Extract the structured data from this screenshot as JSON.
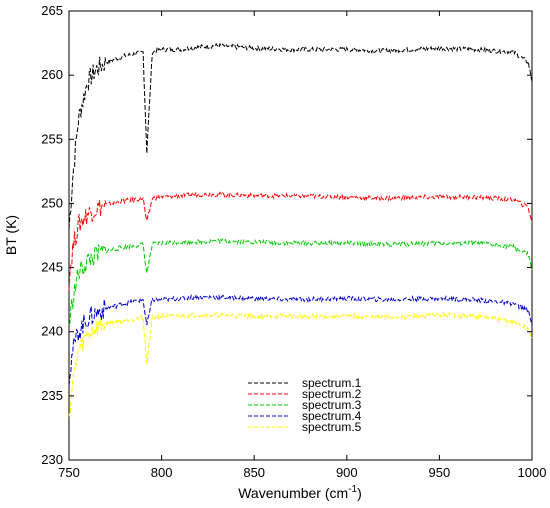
{
  "chart_data": {
    "type": "line",
    "title": "",
    "xlabel": "Wavenumber (cm",
    "xlabel_superscript": "-1",
    "xlabel_suffix": ")",
    "ylabel": "BT (K)",
    "xlim": [
      750,
      1000
    ],
    "ylim": [
      230,
      265
    ],
    "xticks": [
      750,
      800,
      850,
      900,
      950,
      1000
    ],
    "yticks": [
      230,
      235,
      240,
      245,
      250,
      255,
      260,
      265
    ],
    "grid": false,
    "legend_position": "bottom-center",
    "x": [
      750,
      752,
      755,
      760,
      765,
      770,
      780,
      790,
      792,
      795,
      800,
      810,
      820,
      830,
      850,
      870,
      900,
      920,
      950,
      970,
      990,
      998,
      1000
    ],
    "series": [
      {
        "name": "spectrum.1",
        "color": "#000000",
        "values": [
          248.0,
          252.0,
          256.5,
          259.5,
          260.5,
          261.0,
          261.5,
          261.8,
          254.0,
          261.8,
          262.0,
          262.0,
          262.2,
          262.3,
          262.1,
          262.0,
          262.0,
          261.9,
          262.1,
          262.0,
          261.8,
          261.0,
          259.5
        ]
      },
      {
        "name": "spectrum.2",
        "color": "#ff0000",
        "values": [
          244.0,
          246.5,
          248.3,
          249.2,
          249.6,
          249.9,
          250.2,
          250.4,
          248.5,
          250.4,
          250.5,
          250.6,
          250.7,
          250.7,
          250.6,
          250.6,
          250.5,
          250.4,
          250.5,
          250.5,
          250.3,
          249.7,
          248.5
        ]
      },
      {
        "name": "spectrum.3",
        "color": "#00cc00",
        "values": [
          240.5,
          242.5,
          244.5,
          245.5,
          246.0,
          246.3,
          246.6,
          246.8,
          244.5,
          246.8,
          246.9,
          247.0,
          247.0,
          247.1,
          247.0,
          246.9,
          246.9,
          246.8,
          246.9,
          246.9,
          246.6,
          246.0,
          244.8
        ]
      },
      {
        "name": "spectrum.4",
        "color": "#0000cc",
        "values": [
          236.5,
          238.5,
          240.0,
          241.0,
          241.5,
          241.8,
          242.2,
          242.5,
          240.5,
          242.5,
          242.5,
          242.6,
          242.7,
          242.7,
          242.6,
          242.5,
          242.6,
          242.5,
          242.6,
          242.5,
          242.2,
          241.6,
          240.5
        ]
      },
      {
        "name": "spectrum.5",
        "color": "#ffff00",
        "values": [
          233.5,
          236.0,
          238.5,
          239.8,
          240.3,
          240.6,
          240.9,
          241.1,
          237.5,
          241.1,
          241.2,
          241.2,
          241.3,
          241.3,
          241.2,
          241.2,
          241.2,
          241.1,
          241.3,
          241.2,
          240.8,
          240.2,
          239.5
        ]
      }
    ]
  }
}
